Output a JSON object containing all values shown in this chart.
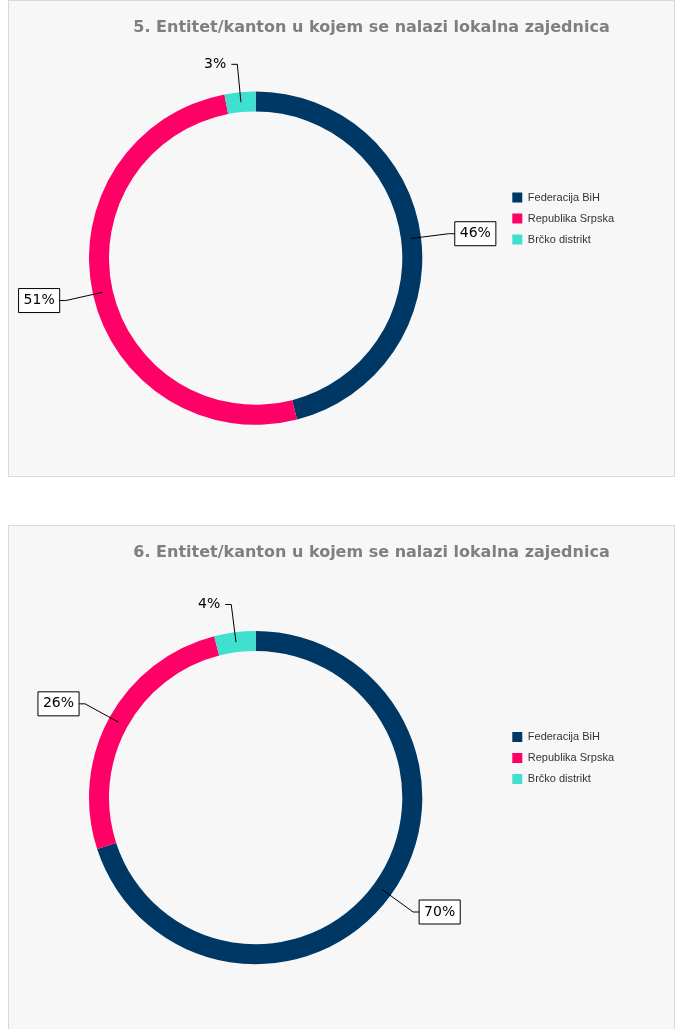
{
  "chart_data": [
    {
      "type": "donut",
      "title": "5. Entitet/kanton u kojem se nalazi lokalna zajednica",
      "categories": [
        "Federacija BiH",
        "Republika Srpska",
        "Brčko distrikt"
      ],
      "values": [
        46,
        51,
        3
      ],
      "colors": [
        "#003865",
        "#ff0066",
        "#40e0d0"
      ],
      "value_labels": [
        "46%",
        "51%",
        "3%"
      ],
      "legend": "right"
    },
    {
      "type": "donut",
      "title": "6. Entitet/kanton u kojem se nalazi lokalna zajednica",
      "categories": [
        "Federacija BiH",
        "Republika Srpska",
        "Brčko distrikt"
      ],
      "values": [
        70,
        26,
        4
      ],
      "colors": [
        "#003865",
        "#ff0066",
        "#40e0d0"
      ],
      "value_labels": [
        "70%",
        "26%",
        "4%"
      ],
      "legend": "right"
    }
  ]
}
